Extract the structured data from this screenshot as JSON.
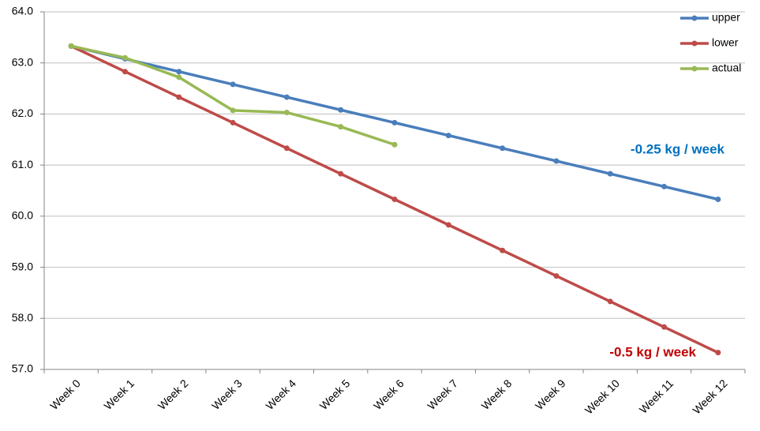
{
  "chart_data": {
    "type": "line",
    "categories": [
      "Week 0",
      "Week 1",
      "Week 2",
      "Week 3",
      "Week 4",
      "Week 5",
      "Week 6",
      "Week 7",
      "Week 8",
      "Week 9",
      "Week 10",
      "Week 11",
      "Week 12"
    ],
    "series": [
      {
        "name": "upper",
        "color": "#4a7ebb",
        "values": [
          63.33,
          63.08,
          62.83,
          62.58,
          62.33,
          62.08,
          61.83,
          61.58,
          61.33,
          61.08,
          60.83,
          60.58,
          60.33
        ]
      },
      {
        "name": "lower",
        "color": "#be4b48",
        "values": [
          63.33,
          62.83,
          62.33,
          61.83,
          61.33,
          60.83,
          60.33,
          59.83,
          59.33,
          58.83,
          58.33,
          57.83,
          57.33
        ]
      },
      {
        "name": "actual",
        "color": "#98b954",
        "values": [
          63.33,
          63.1,
          62.72,
          62.07,
          62.03,
          61.75,
          61.4,
          null,
          null,
          null,
          null,
          null,
          null
        ]
      }
    ],
    "annotations": [
      {
        "text": "-0.25 kg / week",
        "color": "#0070c0"
      },
      {
        "text": "-0.5 kg / week",
        "color": "#c00000"
      }
    ],
    "ylim": [
      57,
      64
    ],
    "yticks": [
      {
        "value": 57,
        "label": "57.0"
      },
      {
        "value": 58,
        "label": "58.0"
      },
      {
        "value": 59,
        "label": "59.0"
      },
      {
        "value": 60,
        "label": "60.0"
      },
      {
        "value": 61,
        "label": "61.0"
      },
      {
        "value": 62,
        "label": "62.0"
      },
      {
        "value": 63,
        "label": "63.0"
      },
      {
        "value": 64,
        "label": "64.0"
      }
    ],
    "grid": true,
    "legend": "top-right"
  }
}
